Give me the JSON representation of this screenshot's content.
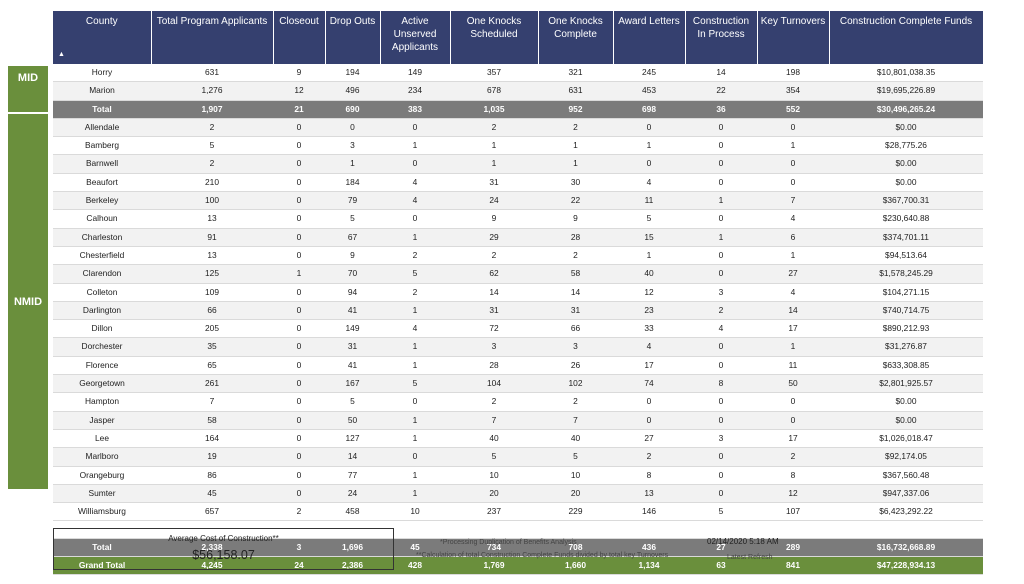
{
  "groups": {
    "mid": "MID",
    "nmid": "NMID"
  },
  "columns": [
    "County",
    "Total Program Applicants",
    "Closeout",
    "Drop Outs",
    "Active Unserved Applicants",
    "One Knocks Scheduled",
    "One Knocks Complete",
    "Award Letters",
    "Construction In Process",
    "Key Turnovers",
    "Construction Complete Funds"
  ],
  "mid_rows": [
    [
      "Horry",
      "631",
      "9",
      "194",
      "149",
      "357",
      "321",
      "245",
      "14",
      "198",
      "$10,801,038.35"
    ],
    [
      "Marion",
      "1,276",
      "12",
      "496",
      "234",
      "678",
      "631",
      "453",
      "22",
      "354",
      "$19,695,226.89"
    ]
  ],
  "mid_total": [
    "Total",
    "1,907",
    "21",
    "690",
    "383",
    "1,035",
    "952",
    "698",
    "36",
    "552",
    "$30,496,265.24"
  ],
  "nmid_rows": [
    [
      "Allendale",
      "2",
      "0",
      "0",
      "0",
      "2",
      "2",
      "0",
      "0",
      "0",
      "$0.00"
    ],
    [
      "Bamberg",
      "5",
      "0",
      "3",
      "1",
      "1",
      "1",
      "1",
      "0",
      "1",
      "$28,775.26"
    ],
    [
      "Barnwell",
      "2",
      "0",
      "1",
      "0",
      "1",
      "1",
      "0",
      "0",
      "0",
      "$0.00"
    ],
    [
      "Beaufort",
      "210",
      "0",
      "184",
      "4",
      "31",
      "30",
      "4",
      "0",
      "0",
      "$0.00"
    ],
    [
      "Berkeley",
      "100",
      "0",
      "79",
      "4",
      "24",
      "22",
      "11",
      "1",
      "7",
      "$367,700.31"
    ],
    [
      "Calhoun",
      "13",
      "0",
      "5",
      "0",
      "9",
      "9",
      "5",
      "0",
      "4",
      "$230,640.88"
    ],
    [
      "Charleston",
      "91",
      "0",
      "67",
      "1",
      "29",
      "28",
      "15",
      "1",
      "6",
      "$374,701.11"
    ],
    [
      "Chesterfield",
      "13",
      "0",
      "9",
      "2",
      "2",
      "2",
      "1",
      "0",
      "1",
      "$94,513.64"
    ],
    [
      "Clarendon",
      "125",
      "1",
      "70",
      "5",
      "62",
      "58",
      "40",
      "0",
      "27",
      "$1,578,245.29"
    ],
    [
      "Colleton",
      "109",
      "0",
      "94",
      "2",
      "14",
      "14",
      "12",
      "3",
      "4",
      "$104,271.15"
    ],
    [
      "Darlington",
      "66",
      "0",
      "41",
      "1",
      "31",
      "31",
      "23",
      "2",
      "14",
      "$740,714.75"
    ],
    [
      "Dillon",
      "205",
      "0",
      "149",
      "4",
      "72",
      "66",
      "33",
      "4",
      "17",
      "$890,212.93"
    ],
    [
      "Dorchester",
      "35",
      "0",
      "31",
      "1",
      "3",
      "3",
      "4",
      "0",
      "1",
      "$31,276.87"
    ],
    [
      "Florence",
      "65",
      "0",
      "41",
      "1",
      "28",
      "26",
      "17",
      "0",
      "11",
      "$633,308.85"
    ],
    [
      "Georgetown",
      "261",
      "0",
      "167",
      "5",
      "104",
      "102",
      "74",
      "8",
      "50",
      "$2,801,925.57"
    ],
    [
      "Hampton",
      "7",
      "0",
      "5",
      "0",
      "2",
      "2",
      "0",
      "0",
      "0",
      "$0.00"
    ],
    [
      "Jasper",
      "58",
      "0",
      "50",
      "1",
      "7",
      "7",
      "0",
      "0",
      "0",
      "$0.00"
    ],
    [
      "Lee",
      "164",
      "0",
      "127",
      "1",
      "40",
      "40",
      "27",
      "3",
      "17",
      "$1,026,018.47"
    ],
    [
      "Marlboro",
      "19",
      "0",
      "14",
      "0",
      "5",
      "5",
      "2",
      "0",
      "2",
      "$92,174.05"
    ],
    [
      "Orangeburg",
      "86",
      "0",
      "77",
      "1",
      "10",
      "10",
      "8",
      "0",
      "8",
      "$367,560.48"
    ],
    [
      "Sumter",
      "45",
      "0",
      "24",
      "1",
      "20",
      "20",
      "13",
      "0",
      "12",
      "$947,337.06"
    ],
    [
      "Williamsburg",
      "657",
      "2",
      "458",
      "10",
      "237",
      "229",
      "146",
      "5",
      "107",
      "$6,423,292.22"
    ]
  ],
  "nmid_total": [
    "Total",
    "2,338",
    "3",
    "1,696",
    "45",
    "734",
    "708",
    "436",
    "27",
    "289",
    "$16,732,668.89"
  ],
  "grand_total": [
    "Grand Total",
    "4,245",
    "24",
    "2,386",
    "428",
    "1,769",
    "1,660",
    "1,134",
    "63",
    "841",
    "$47,228,934.13"
  ],
  "summary": {
    "title": "Average Cost of Construction**",
    "value": "$56,158.07"
  },
  "notes": {
    "note1": "*Processing Duplication of Benefits Analysis",
    "note2": "**Calculation of total Construction Complete Funds divided by total key Turnovers"
  },
  "refresh": {
    "date": "02/14/2020 5:18 AM",
    "label": "Latest  Refresh"
  },
  "colors": {
    "header": "#35406f",
    "total": "#7b7b7b",
    "accent": "#6a8f3c"
  },
  "icons": {
    "sort": "sort-ascending-icon"
  }
}
